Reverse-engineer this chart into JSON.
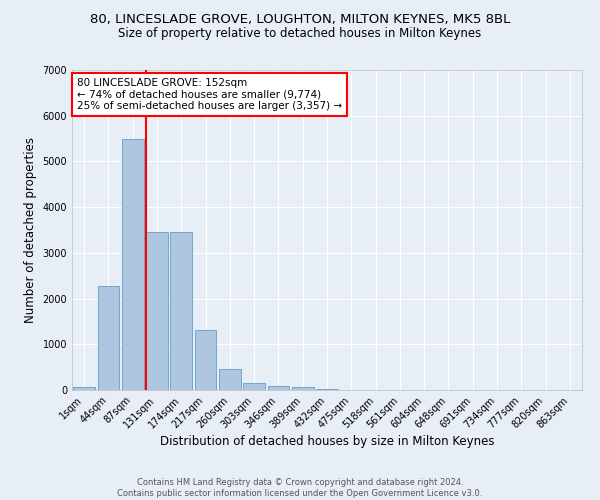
{
  "title_line1": "80, LINCESLADE GROVE, LOUGHTON, MILTON KEYNES, MK5 8BL",
  "title_line2": "Size of property relative to detached houses in Milton Keynes",
  "xlabel": "Distribution of detached houses by size in Milton Keynes",
  "ylabel": "Number of detached properties",
  "footer_line1": "Contains HM Land Registry data © Crown copyright and database right 2024.",
  "footer_line2": "Contains public sector information licensed under the Open Government Licence v3.0.",
  "bar_labels": [
    "1sqm",
    "44sqm",
    "87sqm",
    "131sqm",
    "174sqm",
    "217sqm",
    "260sqm",
    "303sqm",
    "346sqm",
    "389sqm",
    "432sqm",
    "475sqm",
    "518sqm",
    "561sqm",
    "604sqm",
    "648sqm",
    "691sqm",
    "734sqm",
    "777sqm",
    "820sqm",
    "863sqm"
  ],
  "bar_values": [
    75,
    2280,
    5480,
    3450,
    3450,
    1320,
    470,
    155,
    85,
    55,
    30,
    0,
    0,
    0,
    0,
    0,
    0,
    0,
    0,
    0,
    0
  ],
  "bar_color": "#aec6df",
  "bar_edgecolor": "#6ea8d0",
  "ylim": [
    0,
    7000
  ],
  "yticks": [
    0,
    1000,
    2000,
    3000,
    4000,
    5000,
    6000,
    7000
  ],
  "vline_index": 3,
  "annotation_text": "80 LINCESLADE GROVE: 152sqm\n← 74% of detached houses are smaller (9,774)\n25% of semi-detached houses are larger (3,357) →",
  "annotation_box_color": "white",
  "annotation_box_edgecolor": "red",
  "vline_color": "red",
  "background_color": "#e8eef5",
  "grid_color": "white",
  "title_fontsize": 9.5,
  "subtitle_fontsize": 8.5,
  "xlabel_fontsize": 8.5,
  "ylabel_fontsize": 8.5,
  "tick_fontsize": 7,
  "annotation_fontsize": 7.5,
  "footer_fontsize": 6
}
